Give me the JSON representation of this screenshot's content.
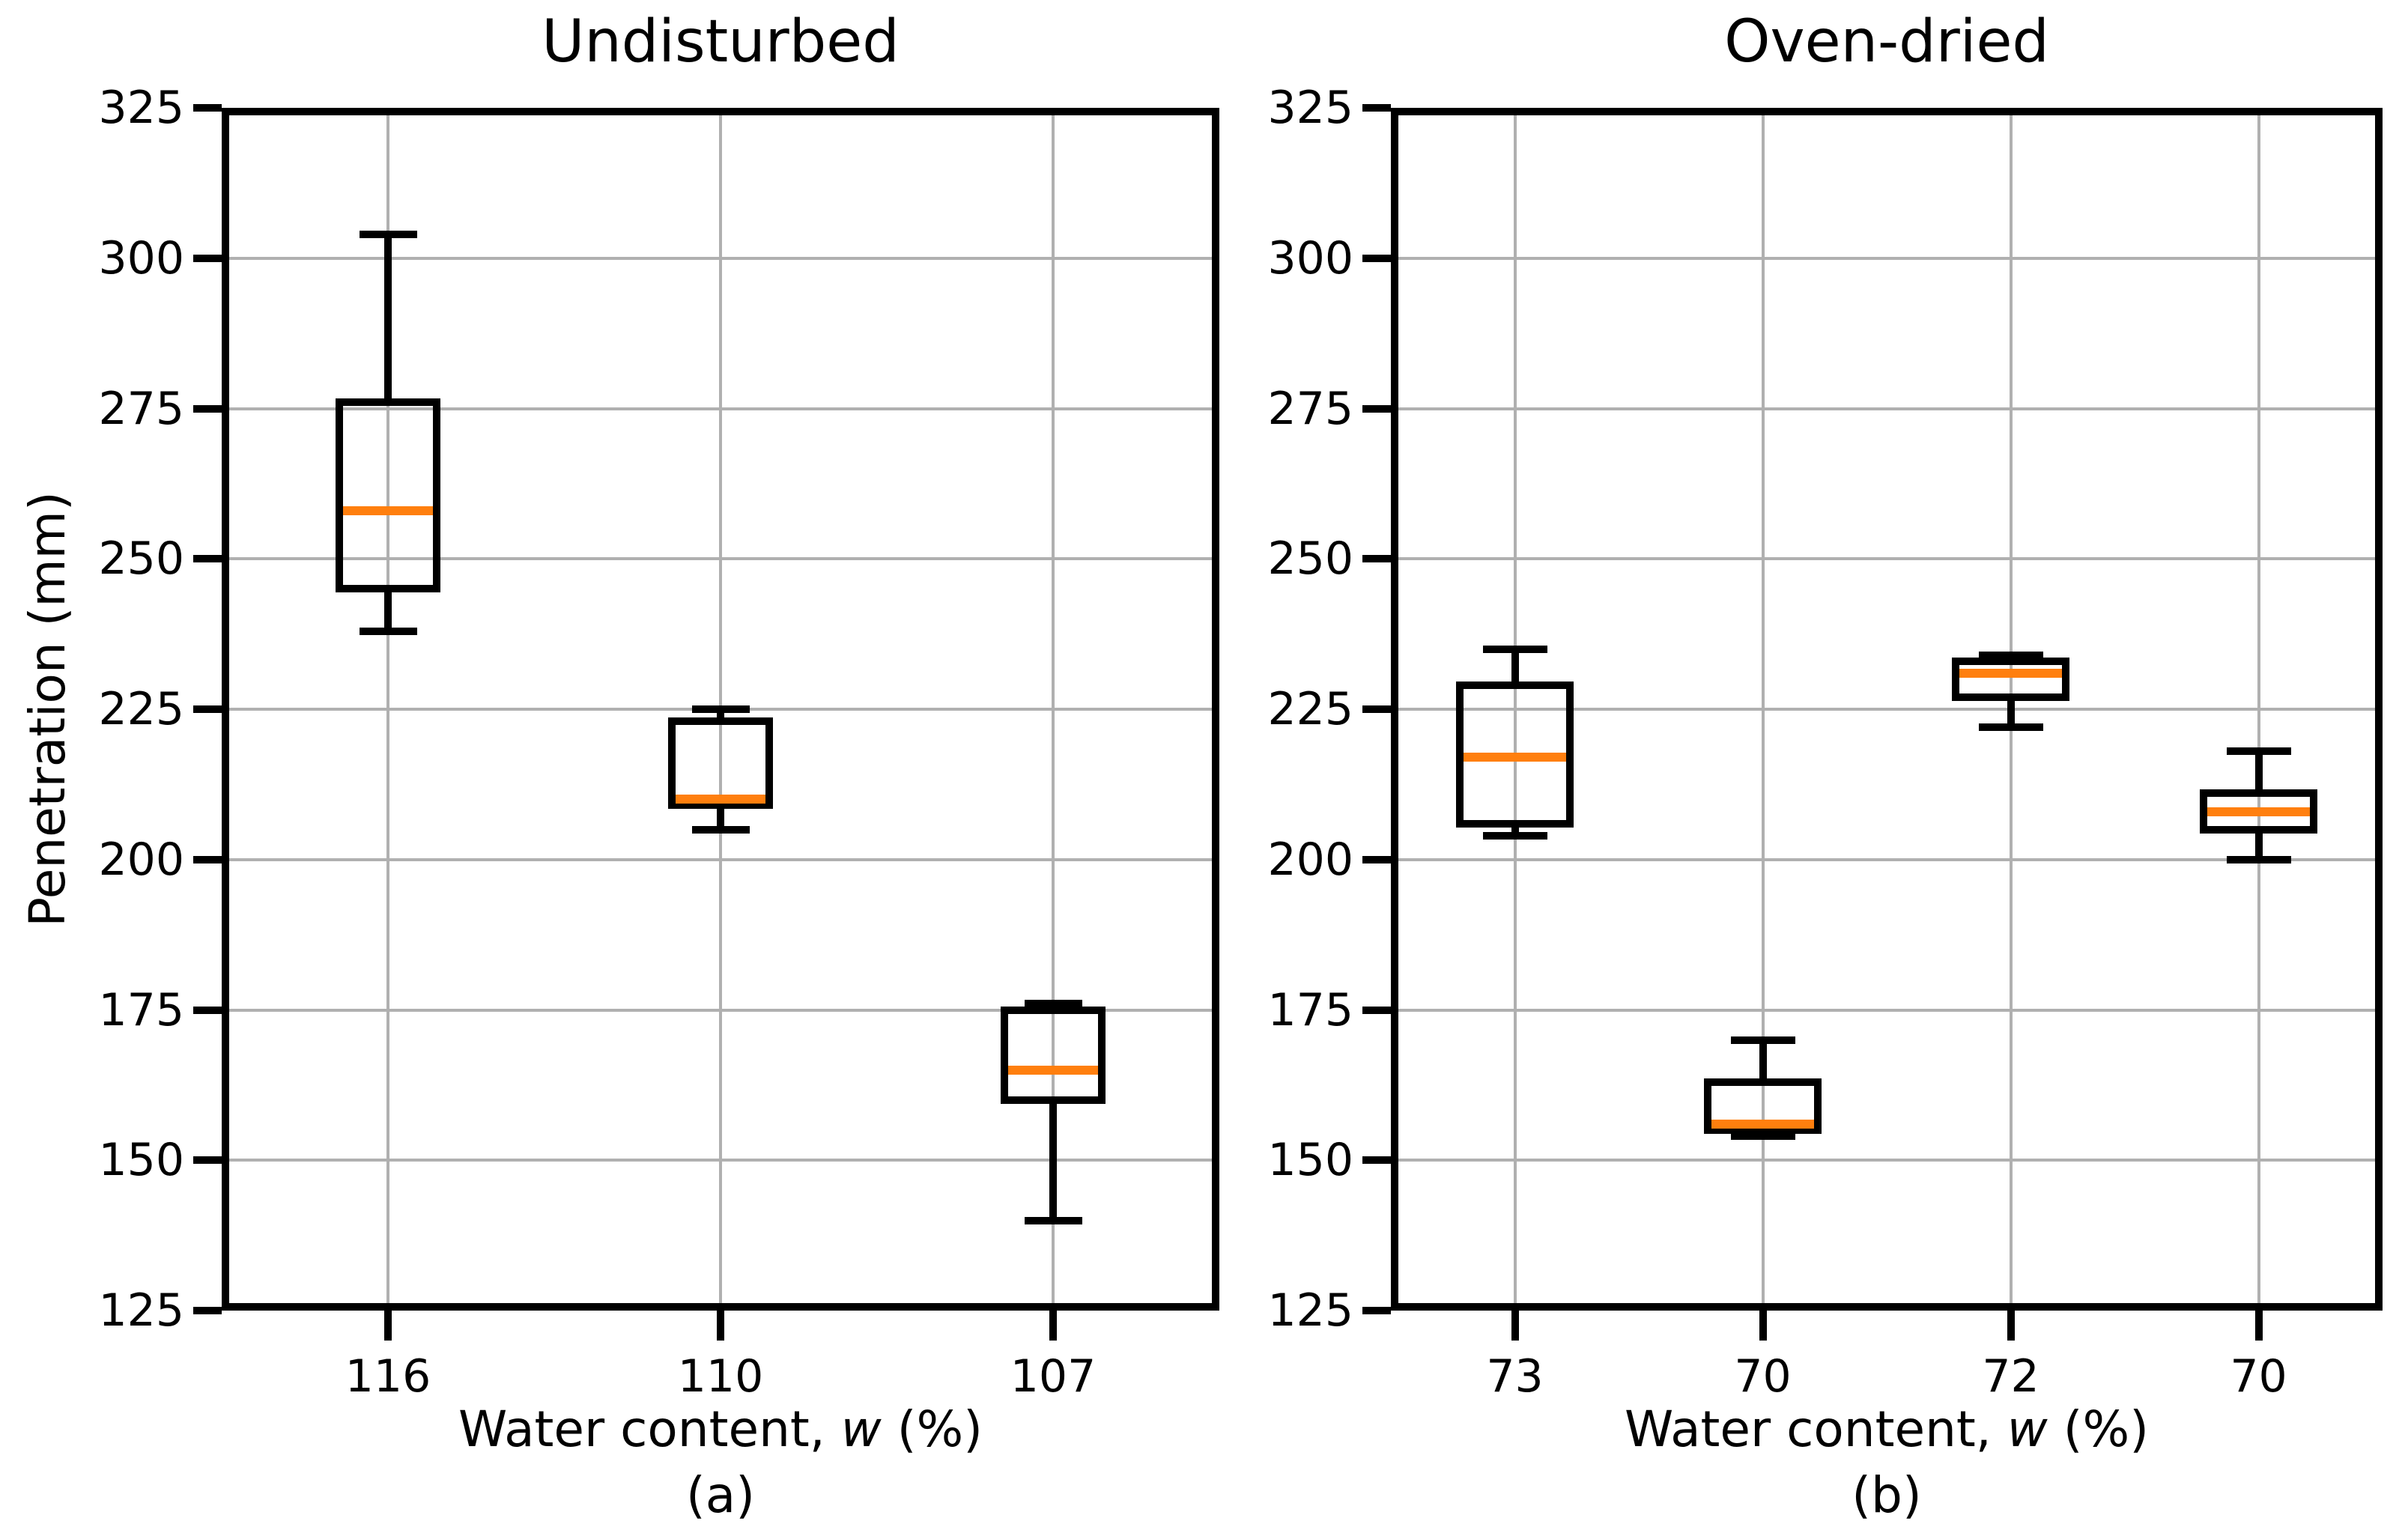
{
  "figure": {
    "ylabel": "Penetration (mm)",
    "background": "#ffffff",
    "colors": {
      "median": "#ff7f0e",
      "box_line": "#000000",
      "grid": "#b0b0b0",
      "text": "#000000"
    }
  },
  "chart_data": [
    {
      "type": "box",
      "title": "Undisturbed",
      "panel_label": "(a)",
      "xlabel_parts": [
        "Water content, ",
        "w",
        " (%)"
      ],
      "ylabel": "Penetration (mm)",
      "ylim": [
        125,
        325
      ],
      "yticks": [
        125,
        150,
        175,
        200,
        225,
        250,
        275,
        300,
        325
      ],
      "grid": true,
      "legend": "none",
      "categories": [
        "116",
        "110",
        "107"
      ],
      "boxes": [
        {
          "label": "116",
          "whislo": 238,
          "q1": 245,
          "med": 258,
          "q3": 276,
          "whishi": 304
        },
        {
          "label": "110",
          "whislo": 205,
          "q1": 209,
          "med": 210,
          "q3": 223,
          "whishi": 225
        },
        {
          "label": "107",
          "whislo": 140,
          "q1": 160,
          "med": 165,
          "q3": 175,
          "whishi": 176
        }
      ]
    },
    {
      "type": "box",
      "title": "Oven-dried",
      "panel_label": "(b)",
      "xlabel_parts": [
        "Water content, ",
        "w",
        " (%)"
      ],
      "ylabel": "Penetration (mm)",
      "ylim": [
        125,
        325
      ],
      "yticks": [
        125,
        150,
        175,
        200,
        225,
        250,
        275,
        300,
        325
      ],
      "grid": true,
      "legend": "none",
      "categories": [
        "73",
        "70",
        "72",
        "70"
      ],
      "boxes": [
        {
          "label": "73",
          "whislo": 204,
          "q1": 206,
          "med": 217,
          "q3": 229,
          "whishi": 235
        },
        {
          "label": "70",
          "whislo": 154,
          "q1": 155,
          "med": 156,
          "q3": 163,
          "whishi": 170
        },
        {
          "label": "72",
          "whislo": 222,
          "q1": 227,
          "med": 231,
          "q3": 233,
          "whishi": 234
        },
        {
          "label": "70",
          "whislo": 200,
          "q1": 205,
          "med": 208,
          "q3": 211,
          "whishi": 218
        }
      ]
    }
  ]
}
